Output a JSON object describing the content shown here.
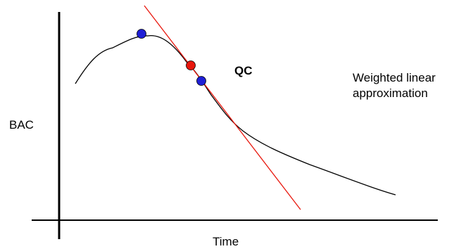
{
  "labels": {
    "y_axis": "BAC",
    "x_axis": "Time",
    "qc": "QC",
    "approximation_line1": "Weighted linear",
    "approximation_line2": "approximation"
  },
  "colors": {
    "axis": "#000000",
    "curve": "#000000",
    "tangent_line": "#e8170d",
    "blue_point": "#1f1fd6",
    "red_point": "#e8170d"
  }
}
